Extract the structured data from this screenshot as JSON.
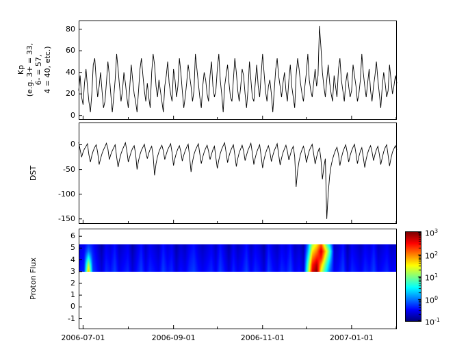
{
  "figure": {
    "background": "#ffffff",
    "line_color": "#000000"
  },
  "x_axis": {
    "range_days": [
      0,
      218
    ],
    "major_tick_days": [
      3,
      65,
      126,
      187
    ],
    "minor_tick_days": [
      34,
      95,
      156,
      218
    ],
    "tick_labels": [
      "2006-07-01",
      "2006-09-01",
      "2006-11-01",
      "2007-01-01"
    ]
  },
  "chart_data": [
    {
      "type": "line",
      "name": "kp-index",
      "ylabel_lines": [
        "Kp",
        "(e.g. 3+ = 33,",
        "6- = 57,",
        "4 = 40, etc.)"
      ],
      "ylim": [
        -4,
        88
      ],
      "yticks": [
        80,
        60,
        40,
        20,
        0
      ],
      "x_start_day": 0,
      "x_step_days": 1,
      "values": [
        23,
        37,
        17,
        10,
        30,
        43,
        27,
        13,
        3,
        20,
        47,
        53,
        33,
        17,
        27,
        40,
        23,
        7,
        13,
        30,
        50,
        37,
        20,
        3,
        17,
        33,
        57,
        43,
        27,
        13,
        23,
        40,
        30,
        17,
        7,
        27,
        47,
        33,
        20,
        13,
        3,
        23,
        43,
        53,
        37,
        23,
        13,
        30,
        17,
        7,
        40,
        57,
        47,
        27,
        17,
        33,
        23,
        13,
        3,
        27,
        37,
        50,
        30,
        20,
        13,
        43,
        33,
        17,
        27,
        53,
        40,
        23,
        7,
        17,
        30,
        47,
        37,
        27,
        13,
        23,
        57,
        43,
        30,
        17,
        7,
        27,
        40,
        33,
        20,
        13,
        37,
        50,
        27,
        17,
        23,
        43,
        57,
        33,
        20,
        3,
        27,
        37,
        47,
        30,
        17,
        13,
        33,
        53,
        40,
        23,
        13,
        27,
        43,
        37,
        20,
        7,
        23,
        50,
        33,
        17,
        13,
        30,
        47,
        27,
        17,
        37,
        57,
        40,
        23,
        13,
        27,
        33,
        20,
        3,
        23,
        43,
        53,
        37,
        27,
        17,
        30,
        40,
        23,
        13,
        33,
        47,
        27,
        17,
        7,
        37,
        53,
        43,
        30,
        20,
        13,
        27,
        40,
        57,
        33,
        23,
        17,
        30,
        43,
        27,
        37,
        83,
        63,
        40,
        27,
        17,
        33,
        47,
        30,
        20,
        13,
        37,
        27,
        17,
        43,
        53,
        33,
        23,
        13,
        30,
        40,
        27,
        17,
        23,
        47,
        37,
        27,
        13,
        20,
        33,
        57,
        40,
        27,
        17,
        30,
        43,
        23,
        13,
        27,
        37,
        50,
        33,
        20,
        7,
        27,
        40,
        30,
        17,
        23,
        47,
        33,
        20,
        27,
        37,
        30
      ]
    },
    {
      "type": "line",
      "name": "dst-index",
      "ylabel": "DST",
      "ylim": [
        -160,
        45
      ],
      "yticks": [
        0,
        -50,
        -100,
        -150
      ],
      "x_start_day": 0,
      "x_step_days": 1,
      "values": [
        5,
        -10,
        -25,
        -15,
        -8,
        -3,
        2,
        -20,
        -35,
        -22,
        -12,
        -5,
        0,
        -15,
        -40,
        -28,
        -18,
        -10,
        -4,
        3,
        -8,
        -30,
        -20,
        -12,
        -6,
        0,
        -25,
        -45,
        -30,
        -18,
        -10,
        -3,
        4,
        -12,
        -35,
        -24,
        -14,
        -7,
        -2,
        -18,
        -50,
        -32,
        -20,
        -11,
        -5,
        1,
        -15,
        -28,
        -17,
        -9,
        -3,
        -22,
        -62,
        -38,
        -24,
        -14,
        -7,
        -1,
        -12,
        -30,
        -19,
        -10,
        -4,
        2,
        -16,
        -42,
        -27,
        -16,
        -8,
        -2,
        -14,
        -33,
        -21,
        -12,
        -5,
        1,
        -24,
        -55,
        -34,
        -20,
        -11,
        -4,
        2,
        -18,
        -38,
        -25,
        -15,
        -7,
        -1,
        -13,
        -30,
        -19,
        -10,
        -3,
        -26,
        -48,
        -31,
        -18,
        -9,
        -2,
        4,
        -15,
        -36,
        -23,
        -13,
        -6,
        0,
        -20,
        -44,
        -28,
        -16,
        -8,
        -1,
        -12,
        -32,
        -21,
        -11,
        -4,
        3,
        -17,
        -40,
        -26,
        -15,
        -7,
        0,
        -22,
        -47,
        -30,
        -18,
        -9,
        -2,
        -14,
        -34,
        -22,
        -12,
        -5,
        2,
        -19,
        -41,
        -27,
        -16,
        -8,
        -1,
        -13,
        -31,
        -20,
        -10,
        -3,
        -24,
        -85,
        -52,
        -33,
        -19,
        -10,
        -3,
        -15,
        -36,
        -23,
        -12,
        -5,
        1,
        -18,
        -39,
        -25,
        -14,
        -6,
        -30,
        -70,
        -45,
        -28,
        -150,
        -98,
        -62,
        -42,
        -29,
        -19,
        -11,
        -5,
        -20,
        -42,
        -27,
        -15,
        -7,
        0,
        -16,
        -35,
        -22,
        -12,
        -5,
        1,
        -18,
        -38,
        -24,
        -13,
        -6,
        -25,
        -46,
        -29,
        -17,
        -8,
        -2,
        -14,
        -32,
        -20,
        -10,
        -3,
        -19,
        -40,
        -26,
        -14,
        -6,
        0,
        -21,
        -43,
        -27,
        -15,
        -8,
        -2,
        -10
      ]
    },
    {
      "type": "heatmap",
      "name": "proton-flux",
      "ylabel": "Proton Flux",
      "ylim": [
        -1.9,
        6.65
      ],
      "yticks": [
        6,
        5,
        4,
        3,
        2,
        1,
        0,
        -1
      ],
      "band_y_range": [
        3,
        5.3
      ],
      "color_scale": "jet",
      "color_log10_range": [
        -1,
        3
      ],
      "x_step_days": 3,
      "row_count": 5,
      "row_offsets": [
        0.05,
        0,
        -0.05,
        -0.1,
        -0.15
      ],
      "base_column_log10": [
        -0.5,
        -0.4,
        -0.6,
        -0.3,
        -0.5,
        -0.7,
        -0.4,
        -0.5,
        -0.3,
        -0.6,
        -0.5,
        -0.4,
        -0.7,
        -0.5,
        -0.3,
        -0.6,
        -0.4,
        -0.5,
        -0.6,
        -0.3,
        -0.5,
        -0.4,
        -0.7,
        -0.5,
        -0.6,
        -0.4,
        -0.3,
        -0.5,
        -0.6,
        -0.5,
        -0.4,
        -0.6,
        -0.3,
        -0.5,
        -0.7,
        -0.4,
        -0.6,
        -0.5,
        -0.3,
        -0.6,
        -0.4,
        -0.5,
        -0.7,
        -0.3,
        -0.5,
        -0.6,
        -0.4,
        -0.5,
        -0.3,
        -0.6,
        -0.5,
        -0.7,
        -0.4,
        -0.5,
        -0.6,
        -0.3,
        -0.4,
        -0.5,
        -0.6,
        -0.5,
        -0.3,
        -0.7,
        -0.4,
        -0.5,
        -0.6,
        -0.4,
        -0.5,
        -0.3,
        -0.6,
        -0.5,
        -0.4,
        -0.6,
        -0.5
      ],
      "events": [
        {
          "col": 2,
          "values": [
            1.8,
            1.3,
            0.6,
            0.0,
            -0.3
          ]
        },
        {
          "col": 52,
          "values": [
            1.0,
            0.8,
            0.5,
            0.2,
            0.0
          ]
        },
        {
          "col": 53,
          "values": [
            2.6,
            2.4,
            2.0,
            1.6,
            1.2
          ]
        },
        {
          "col": 54,
          "values": [
            3.0,
            2.8,
            2.4,
            2.0,
            1.6
          ]
        },
        {
          "col": 55,
          "values": [
            1.4,
            1.8,
            2.4,
            2.7,
            2.2
          ]
        },
        {
          "col": 56,
          "values": [
            0.6,
            0.9,
            1.3,
            1.7,
            1.1
          ]
        },
        {
          "col": 57,
          "values": [
            -0.1,
            0.1,
            0.4,
            0.7,
            0.3
          ]
        }
      ]
    }
  ],
  "colorbar": {
    "tick_exponents": [
      3,
      2,
      1,
      0,
      -1
    ],
    "log10_range": [
      -1,
      3
    ]
  }
}
